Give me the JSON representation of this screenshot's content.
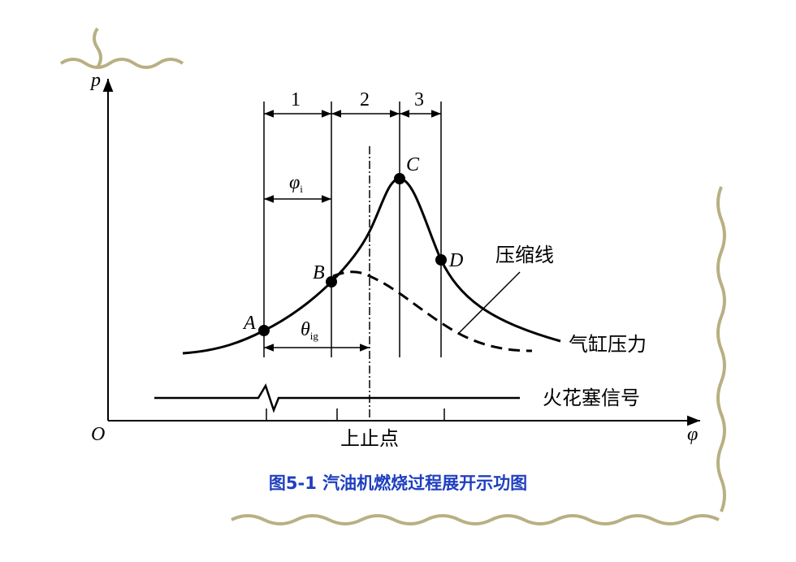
{
  "axes": {
    "y_label": "p",
    "origin": "O",
    "x_label": "φ"
  },
  "intervals": [
    "1",
    "2",
    "3"
  ],
  "spans": {
    "phi_i": {
      "symbol": "φ",
      "subscript": "i"
    },
    "theta_ig": {
      "symbol": "θ",
      "subscript": "ig"
    }
  },
  "points": [
    "A",
    "B",
    "C",
    "D"
  ],
  "curve_labels": {
    "compression": "压缩线",
    "cylinder_pressure": "气缸压力",
    "spark_signal": "火花塞信号",
    "tdc": "上止点"
  },
  "caption": "图5-1 汽油机燃烧过程展开示功图"
}
